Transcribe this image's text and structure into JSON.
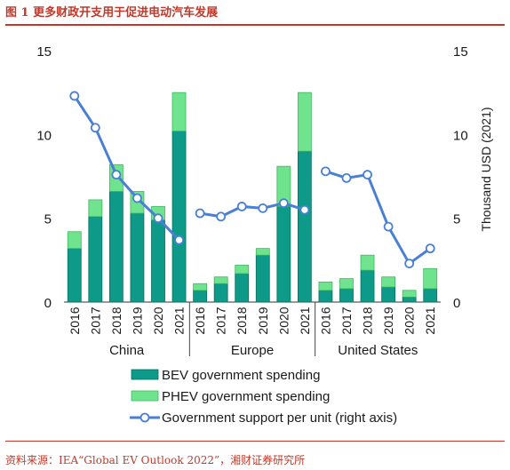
{
  "figure": {
    "title": "图 1 更多财政开支用于促进电动汽车发展",
    "source": "资料来源：IEA“Global EV Outlook 2022”，湘财证券研究所"
  },
  "colors": {
    "bev": "#0e9a88",
    "phev": "#6fe38e",
    "line": "#4a7fd6",
    "accent": "#c0392b"
  },
  "chart_data": {
    "type": "bar",
    "groups": [
      "China",
      "Europe",
      "United States"
    ],
    "categories": [
      "2016",
      "2017",
      "2018",
      "2019",
      "2020",
      "2021"
    ],
    "series": [
      {
        "name": "BEV government spending",
        "kind": "stacked-bar",
        "values": {
          "China": [
            3.2,
            5.1,
            6.6,
            5.3,
            4.9,
            10.2
          ],
          "Europe": [
            0.7,
            1.1,
            1.7,
            2.8,
            5.7,
            9.0
          ],
          "United States": [
            0.7,
            0.8,
            1.9,
            0.9,
            0.3,
            0.8
          ]
        }
      },
      {
        "name": "PHEV government spending",
        "kind": "stacked-bar",
        "values": {
          "China": [
            1.0,
            1.0,
            1.6,
            1.3,
            0.8,
            2.3
          ],
          "Europe": [
            0.4,
            0.4,
            0.5,
            0.4,
            2.4,
            3.5
          ],
          "United States": [
            0.5,
            0.6,
            0.9,
            0.6,
            0.4,
            1.2
          ]
        }
      },
      {
        "name": "Government support per unit (right axis)",
        "kind": "line",
        "axis": "right",
        "values": {
          "China": [
            12.3,
            10.4,
            7.6,
            6.2,
            5.0,
            3.7
          ],
          "Europe": [
            5.3,
            5.1,
            5.7,
            5.6,
            5.9,
            5.5
          ],
          "United States": [
            7.8,
            7.4,
            7.6,
            4.5,
            2.3,
            3.2
          ]
        }
      }
    ],
    "y_left": {
      "ticks": [
        "0",
        "5",
        "10",
        "15"
      ],
      "lim": [
        0,
        15
      ]
    },
    "y_right": {
      "ticks": [
        "0",
        "5",
        "10",
        "15"
      ],
      "lim": [
        0,
        15
      ],
      "label": "Thousand USD (2021)"
    },
    "legend_position": "bottom"
  }
}
